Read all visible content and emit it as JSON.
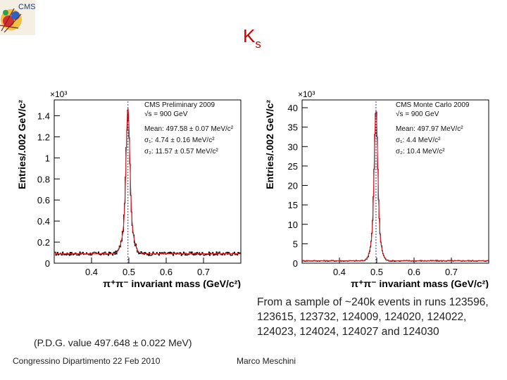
{
  "slide": {
    "title_main": "K",
    "title_sub": "s",
    "logo_text": "CMS",
    "sample_note": "From a sample of ~240k events in runs 123596, 123615, 123732, 124009, 124020, 124022, 124023, 124024, 124027 and 124030",
    "pdg_note": "(P.D.G. value 497.648 ± 0.022 MeV)",
    "footer_left": "Congressino Dipartimento 22 Feb 2010",
    "footer_author": "Marco Meschini"
  },
  "colors": {
    "title": "#cc0000",
    "data_line": "#000000",
    "fit_line": "#e02020",
    "marker_line": "#3333cc"
  },
  "chart_data": [
    {
      "type": "line",
      "multiplier": "×10³",
      "xlabel": "π⁺π⁻ invariant mass (GeV/c²)",
      "ylabel": "Entries/.002 GeV/c²",
      "xlim": [
        0.3,
        0.8
      ],
      "ylim": [
        0,
        1.55
      ],
      "xticks": [
        0.4,
        0.5,
        0.6,
        0.7
      ],
      "xtick_labels": [
        "0.4",
        "0.5",
        "0.6",
        "0.7"
      ],
      "yticks": [
        0,
        0.2,
        0.4,
        0.6,
        0.8,
        1.0,
        1.2,
        1.4
      ],
      "ytick_labels": [
        "0",
        "0.2",
        "0.4",
        "0.6",
        "0.8",
        "1",
        "1.2",
        "1.4"
      ],
      "marker_x": 0.4976,
      "peak": 1.38,
      "background": 0.09,
      "width1": 0.0047,
      "width2": 0.0116,
      "frac1": 0.72,
      "annotations": [
        "CMS Preliminary 2009",
        "√s = 900 GeV",
        "Mean: 497.58 ± 0.07 MeV/c²",
        "σ₁: 4.74 ± 0.16 MeV/c²",
        "σ₂: 11.57 ± 0.57 MeV/c²"
      ]
    },
    {
      "type": "line",
      "multiplier": "×10³",
      "xlabel": "π⁺π⁻ invariant mass (GeV/c²)",
      "ylabel": "Entries/.002 GeV/c²",
      "xlim": [
        0.3,
        0.8
      ],
      "ylim": [
        0,
        42
      ],
      "xticks": [
        0.4,
        0.5,
        0.6,
        0.7
      ],
      "xtick_labels": [
        "0.4",
        "0.5",
        "0.6",
        "0.7"
      ],
      "yticks": [
        0,
        5,
        10,
        15,
        20,
        25,
        30,
        35,
        40
      ],
      "ytick_labels": [
        "0",
        "5",
        "10",
        "15",
        "20",
        "25",
        "30",
        "35",
        "40"
      ],
      "marker_x": 0.498,
      "peak": 38.5,
      "background": 0.6,
      "width1": 0.0044,
      "width2": 0.0104,
      "frac1": 0.74,
      "annotations": [
        "CMS Monte Carlo 2009",
        "√s = 900 GeV",
        "Mean: 497.97 MeV/c²",
        "σ₁: 4.4 MeV/c²",
        "σ₂: 10.4 MeV/c²"
      ]
    }
  ]
}
